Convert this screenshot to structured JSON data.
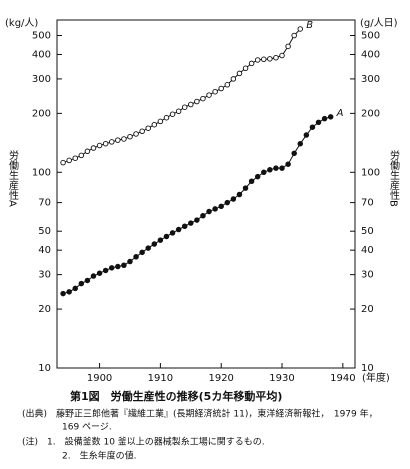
{
  "chart_data": {
    "type": "line",
    "title": "第1図　労働生産性の推移(5カ年移動平均)",
    "ylabel": "労働生産性A",
    "y2label": "労働生産性B",
    "yunit": "(kg/人)",
    "y2unit": "(g/人日)",
    "xlabel": "(年度)",
    "log_y": true,
    "x": [
      1894,
      1895,
      1896,
      1897,
      1898,
      1899,
      1900,
      1901,
      1902,
      1903,
      1904,
      1905,
      1906,
      1907,
      1908,
      1909,
      1910,
      1911,
      1912,
      1913,
      1914,
      1915,
      1916,
      1917,
      1918,
      1919,
      1920,
      1921,
      1922,
      1923,
      1924,
      1925,
      1926,
      1927,
      1928,
      1929,
      1930,
      1931,
      1932,
      1933,
      1934,
      1935,
      1936,
      1937,
      1938
    ],
    "series": [
      {
        "name": "A",
        "color": "#111111",
        "marker": "filled",
        "values": [
          24,
          24.5,
          25.5,
          27,
          28,
          29.5,
          30.5,
          31.5,
          32.5,
          33,
          33.5,
          35,
          37,
          39,
          41,
          43,
          45,
          47,
          49,
          51,
          53,
          55,
          57,
          60,
          63,
          65,
          67,
          70,
          73,
          77,
          83,
          90,
          95,
          100,
          103,
          105,
          105,
          110,
          125,
          140,
          155,
          170,
          180,
          188,
          192
        ]
      },
      {
        "name": "B",
        "color": "#111111",
        "marker": "open",
        "axis": "y2",
        "values": [
          112,
          115,
          118,
          122,
          128,
          133,
          137,
          140,
          143,
          146,
          148,
          152,
          157,
          162,
          168,
          175,
          182,
          190,
          198,
          205,
          215,
          222,
          230,
          238,
          248,
          258,
          268,
          280,
          300,
          320,
          340,
          360,
          375,
          378,
          380,
          385,
          395,
          440,
          500,
          540,
          null,
          null,
          null,
          null,
          null
        ]
      }
    ],
    "xlim": [
      1893,
      1942
    ],
    "xticks": [
      1900,
      1910,
      1920,
      1930,
      1940
    ],
    "ylim": [
      10,
      600
    ],
    "yticks": [
      10,
      20,
      30,
      40,
      50,
      70,
      100,
      200,
      300,
      400,
      500
    ],
    "y2lim": [
      10,
      600
    ],
    "y2ticks": [
      10,
      20,
      30,
      40,
      50,
      70,
      100,
      200,
      300,
      400,
      500
    ],
    "notes": [
      "(出典)　藤野正三郎他著『繊維工業』(長期経済統計 11)，東洋経済新報社，　1979 年，",
      "169 ページ.",
      "(注)　1.　設備釜数 10 釜以上の器械製糸工場に関するもの.",
      "2.　生糸年度の値."
    ]
  }
}
